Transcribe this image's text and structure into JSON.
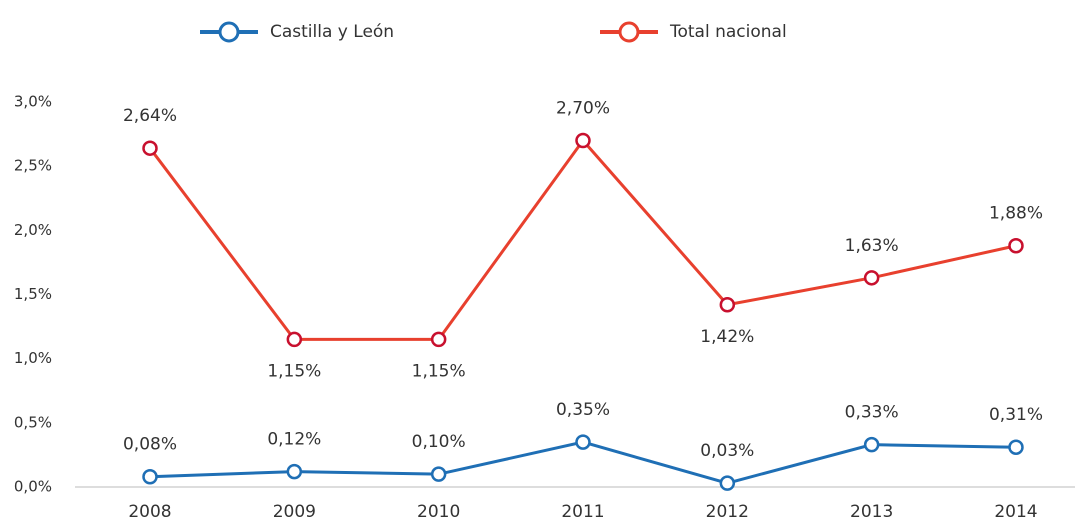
{
  "chart_data": {
    "type": "line",
    "categories": [
      "2008",
      "2009",
      "2010",
      "2011",
      "2012",
      "2013",
      "2014"
    ],
    "series": [
      {
        "name": "Castilla y León",
        "color": "#1f6fb5",
        "values": [
          0.08,
          0.12,
          0.1,
          0.35,
          0.03,
          0.33,
          0.31
        ],
        "value_labels": [
          "0,08%",
          "0,12%",
          "0,10%",
          "0,35%",
          "0,03%",
          "0,33%",
          "0,31%"
        ]
      },
      {
        "name": "Total nacional",
        "color": "#e8402e",
        "values": [
          2.64,
          1.15,
          1.15,
          2.7,
          1.42,
          1.63,
          1.88
        ],
        "value_labels": [
          "2,64%",
          "1,15%",
          "1,15%",
          "2,70%",
          "1,42%",
          "1,63%",
          "1,88%"
        ]
      }
    ],
    "ylim": [
      0,
      3.0
    ],
    "yticks": [
      {
        "value": 0,
        "label": "0,0%"
      },
      {
        "value": 0.5,
        "label": "0,5%"
      },
      {
        "value": 1.0,
        "label": "1,0%"
      },
      {
        "value": 1.5,
        "label": "1,5%"
      },
      {
        "value": 2.0,
        "label": "2,0%"
      },
      {
        "value": 2.5,
        "label": "2,5%"
      },
      {
        "value": 3.0,
        "label": "3,0%"
      }
    ],
    "grid": false,
    "legend": "top"
  }
}
